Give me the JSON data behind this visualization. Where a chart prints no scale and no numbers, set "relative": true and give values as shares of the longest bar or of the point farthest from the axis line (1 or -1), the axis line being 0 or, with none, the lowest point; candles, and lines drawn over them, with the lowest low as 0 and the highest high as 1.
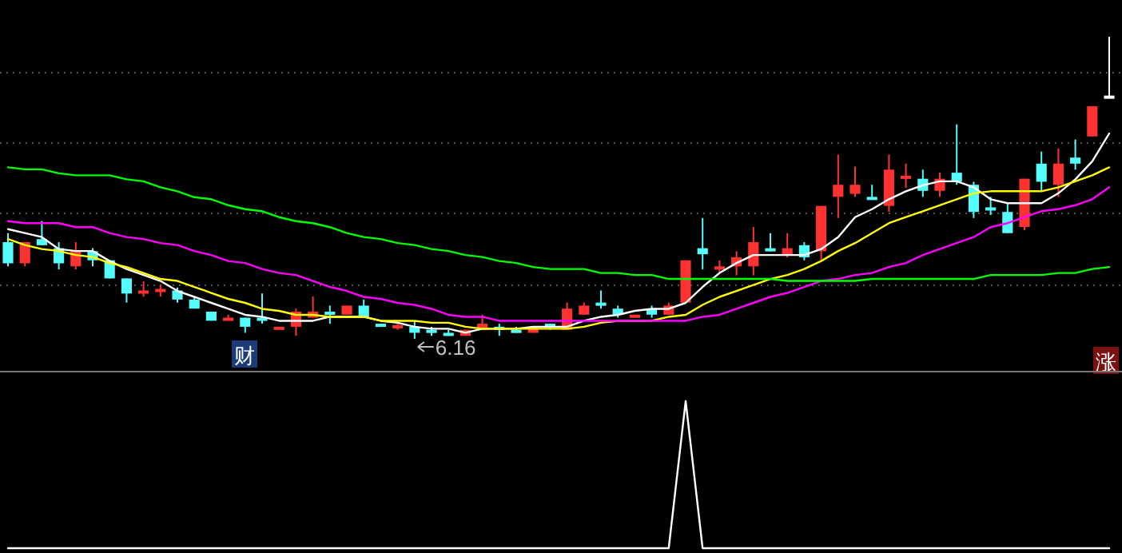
{
  "chart_data": [
    {
      "type": "candlestick",
      "relative": true,
      "grid": "y",
      "categories": [
        null,
        null,
        null,
        null,
        null,
        null,
        null,
        null,
        null,
        null,
        null,
        null,
        null,
        null,
        null,
        null,
        null,
        null,
        null,
        null,
        null,
        null,
        null,
        null,
        null,
        null,
        null,
        null,
        null,
        null,
        null,
        null,
        null,
        null,
        null,
        null,
        null,
        null,
        null,
        null,
        null,
        null,
        null,
        null,
        null,
        null,
        null,
        null,
        null,
        null,
        null,
        null,
        null,
        null,
        null,
        null,
        null,
        null,
        null,
        null,
        null,
        null,
        null,
        null,
        null,
        null
      ],
      "ohlc": [
        [
          0.32,
          0.35,
          0.24,
          0.25
        ],
        [
          0.25,
          0.32,
          0.24,
          0.32
        ],
        [
          0.33,
          0.39,
          0.31,
          0.31
        ],
        [
          0.3,
          0.32,
          0.23,
          0.25
        ],
        [
          0.24,
          0.32,
          0.23,
          0.29
        ],
        [
          0.29,
          0.3,
          0.24,
          0.26
        ],
        [
          0.26,
          0.26,
          0.2,
          0.2
        ],
        [
          0.2,
          0.2,
          0.12,
          0.15
        ],
        [
          0.15,
          0.19,
          0.14,
          0.16
        ],
        [
          0.16,
          0.18,
          0.14,
          0.16
        ],
        [
          0.16,
          0.17,
          0.12,
          0.13
        ],
        [
          0.13,
          0.14,
          0.1,
          0.1
        ],
        [
          0.09,
          0.09,
          0.06,
          0.06
        ],
        [
          0.06,
          0.08,
          0.06,
          0.07
        ],
        [
          0.07,
          0.07,
          0.02,
          0.04
        ],
        [
          0.07,
          0.15,
          0.05,
          0.06
        ],
        [
          0.03,
          0.04,
          0.03,
          0.04
        ],
        [
          0.04,
          0.1,
          0.01,
          0.09
        ],
        [
          0.07,
          0.14,
          0.07,
          0.09
        ],
        [
          0.09,
          0.11,
          0.05,
          0.08
        ],
        [
          0.08,
          0.11,
          0.08,
          0.11
        ],
        [
          0.11,
          0.13,
          0.07,
          0.07
        ],
        [
          0.05,
          0.05,
          0.04,
          0.04
        ],
        [
          0.04,
          0.05,
          0.03,
          0.04
        ],
        [
          0.04,
          0.06,
          0.0,
          0.02
        ],
        [
          0.03,
          0.04,
          0.01,
          0.02
        ],
        [
          0.02,
          0.03,
          0.01,
          0.01
        ],
        [
          0.01,
          0.03,
          0.01,
          0.03
        ],
        [
          0.03,
          0.08,
          0.03,
          0.05
        ],
        [
          0.04,
          0.05,
          0.01,
          0.03
        ],
        [
          0.03,
          0.04,
          0.02,
          0.02
        ],
        [
          0.02,
          0.04,
          0.02,
          0.04
        ],
        [
          0.05,
          0.05,
          0.03,
          0.04
        ],
        [
          0.03,
          0.12,
          0.03,
          0.1
        ],
        [
          0.08,
          0.12,
          0.08,
          0.11
        ],
        [
          0.12,
          0.16,
          0.1,
          0.11
        ],
        [
          0.1,
          0.11,
          0.07,
          0.08
        ],
        [
          0.07,
          0.08,
          0.07,
          0.08
        ],
        [
          0.1,
          0.11,
          0.07,
          0.08
        ],
        [
          0.08,
          0.12,
          0.08,
          0.11
        ],
        [
          0.12,
          0.26,
          0.12,
          0.26
        ],
        [
          0.3,
          0.4,
          0.23,
          0.28
        ],
        [
          0.23,
          0.26,
          0.22,
          0.24
        ],
        [
          0.24,
          0.29,
          0.21,
          0.27
        ],
        [
          0.24,
          0.37,
          0.21,
          0.32
        ],
        [
          0.3,
          0.35,
          0.29,
          0.29
        ],
        [
          0.28,
          0.35,
          0.27,
          0.3
        ],
        [
          0.31,
          0.32,
          0.26,
          0.27
        ],
        [
          0.29,
          0.44,
          0.26,
          0.44
        ],
        [
          0.47,
          0.61,
          0.4,
          0.51
        ],
        [
          0.48,
          0.57,
          0.47,
          0.51
        ],
        [
          0.47,
          0.51,
          0.46,
          0.46
        ],
        [
          0.44,
          0.61,
          0.42,
          0.56
        ],
        [
          0.53,
          0.58,
          0.5,
          0.54
        ],
        [
          0.53,
          0.56,
          0.47,
          0.49
        ],
        [
          0.49,
          0.55,
          0.47,
          0.53
        ],
        [
          0.55,
          0.71,
          0.51,
          0.52
        ],
        [
          0.51,
          0.52,
          0.4,
          0.42
        ],
        [
          0.43,
          0.47,
          0.41,
          0.43
        ],
        [
          0.42,
          0.45,
          0.35,
          0.35
        ],
        [
          0.37,
          0.53,
          0.36,
          0.53
        ],
        [
          0.58,
          0.62,
          0.49,
          0.52
        ],
        [
          0.51,
          0.63,
          0.47,
          0.58
        ],
        [
          0.6,
          0.66,
          0.56,
          0.58
        ],
        [
          0.67,
          0.77,
          0.67,
          0.77
        ],
        [
          0.8,
          1.0,
          0.8,
          0.8
        ]
      ],
      "colors": [
        "#54fcfc",
        "#ff3232",
        "#54fcfc",
        "#54fcfc",
        "#ff3232",
        "#54fcfc",
        "#54fcfc",
        "#54fcfc",
        "#ff3232",
        "#ff3232",
        "#54fcfc",
        "#54fcfc",
        "#54fcfc",
        "#ff3232",
        "#54fcfc",
        "#54fcfc",
        "#ff3232",
        "#ff3232",
        "#ff3232",
        "#54fcfc",
        "#ff3232",
        "#54fcfc",
        "#54fcfc",
        "#ff3232",
        "#54fcfc",
        "#54fcfc",
        "#54fcfc",
        "#ff3232",
        "#ff3232",
        "#54fcfc",
        "#54fcfc",
        "#ff3232",
        "#54fcfc",
        "#ff3232",
        "#ff3232",
        "#54fcfc",
        "#54fcfc",
        "#ff3232",
        "#54fcfc",
        "#ff3232",
        "#ff3232",
        "#54fcfc",
        "#ff3232",
        "#ff3232",
        "#ff3232",
        "#54fcfc",
        "#ff3232",
        "#54fcfc",
        "#ff3232",
        "#ff3232",
        "#ff3232",
        "#54fcfc",
        "#ff3232",
        "#ff3232",
        "#54fcfc",
        "#ff3232",
        "#54fcfc",
        "#54fcfc",
        "#54fcfc",
        "#54fcfc",
        "#ff3232",
        "#54fcfc",
        "#ff3232",
        "#54fcfc",
        "#ff3232",
        "#ffffff"
      ],
      "annotations": [
        {
          "text": "6.16",
          "y": 0
        },
        "财",
        "涨"
      ]
    },
    {
      "type": "line",
      "relative": true,
      "categories": [
        null,
        null,
        null,
        null,
        null,
        null,
        null,
        null,
        null,
        null,
        null,
        null,
        null,
        null,
        null,
        null,
        null,
        null,
        null,
        null,
        null,
        null,
        null,
        null,
        null,
        null,
        null,
        null,
        null,
        null,
        null,
        null,
        null,
        null,
        null,
        null,
        null,
        null,
        null,
        null,
        null,
        null,
        null,
        null,
        null,
        null,
        null,
        null,
        null,
        null,
        null,
        null,
        null,
        null,
        null,
        null,
        null,
        null,
        null,
        null,
        null,
        null,
        null,
        null,
        null,
        null
      ],
      "series": [
        {
          "color": "#ffffff",
          "values": [
            0.52,
            0.5,
            0.48,
            0.42,
            0.41,
            0.41,
            0.36,
            0.32,
            0.29,
            0.26,
            0.21,
            0.18,
            0.15,
            0.12,
            0.09,
            0.08,
            0.06,
            0.06,
            0.06,
            0.08,
            0.08,
            0.08,
            0.06,
            0.05,
            0.03,
            0.02,
            0.02,
            0.0,
            0.02,
            0.02,
            0.02,
            0.03,
            0.03,
            0.03,
            0.06,
            0.08,
            0.09,
            0.11,
            0.12,
            0.12,
            0.15,
            0.23,
            0.3,
            0.35,
            0.39,
            0.39,
            0.39,
            0.39,
            0.42,
            0.48,
            0.58,
            0.62,
            0.67,
            0.71,
            0.74,
            0.76,
            0.76,
            0.73,
            0.67,
            0.65,
            0.65,
            0.65,
            0.7,
            0.77,
            0.86,
            1.0
          ]
        },
        {
          "color": "#ffff00",
          "values": [
            0.47,
            0.44,
            0.42,
            0.41,
            0.39,
            0.38,
            0.35,
            0.33,
            0.3,
            0.27,
            0.26,
            0.23,
            0.2,
            0.17,
            0.15,
            0.12,
            0.11,
            0.09,
            0.09,
            0.08,
            0.08,
            0.08,
            0.06,
            0.06,
            0.06,
            0.05,
            0.05,
            0.03,
            0.02,
            0.02,
            0.02,
            0.02,
            0.02,
            0.02,
            0.03,
            0.05,
            0.06,
            0.06,
            0.06,
            0.08,
            0.09,
            0.14,
            0.18,
            0.21,
            0.24,
            0.27,
            0.29,
            0.32,
            0.36,
            0.41,
            0.45,
            0.5,
            0.55,
            0.58,
            0.61,
            0.64,
            0.67,
            0.7,
            0.71,
            0.71,
            0.71,
            0.71,
            0.73,
            0.76,
            0.79,
            0.83
          ]
        },
        {
          "color": "#ff00ff",
          "values": [
            0.56,
            0.55,
            0.55,
            0.55,
            0.53,
            0.53,
            0.5,
            0.48,
            0.47,
            0.45,
            0.44,
            0.41,
            0.39,
            0.36,
            0.35,
            0.32,
            0.3,
            0.29,
            0.26,
            0.23,
            0.21,
            0.18,
            0.17,
            0.15,
            0.14,
            0.12,
            0.09,
            0.08,
            0.08,
            0.06,
            0.06,
            0.06,
            0.06,
            0.06,
            0.06,
            0.06,
            0.06,
            0.06,
            0.06,
            0.06,
            0.06,
            0.08,
            0.09,
            0.12,
            0.15,
            0.18,
            0.2,
            0.23,
            0.26,
            0.27,
            0.29,
            0.3,
            0.33,
            0.35,
            0.39,
            0.42,
            0.45,
            0.48,
            0.53,
            0.55,
            0.58,
            0.61,
            0.62,
            0.64,
            0.67,
            0.73
          ]
        },
        {
          "color": "#00ff00",
          "values": [
            0.83,
            0.82,
            0.82,
            0.8,
            0.79,
            0.79,
            0.79,
            0.77,
            0.76,
            0.73,
            0.71,
            0.68,
            0.67,
            0.64,
            0.62,
            0.61,
            0.58,
            0.56,
            0.55,
            0.53,
            0.5,
            0.48,
            0.47,
            0.45,
            0.44,
            0.42,
            0.41,
            0.39,
            0.38,
            0.36,
            0.35,
            0.33,
            0.32,
            0.32,
            0.32,
            0.3,
            0.3,
            0.29,
            0.29,
            0.27,
            0.27,
            0.27,
            0.27,
            0.27,
            0.27,
            0.27,
            0.26,
            0.26,
            0.26,
            0.26,
            0.26,
            0.27,
            0.27,
            0.27,
            0.27,
            0.27,
            0.27,
            0.27,
            0.29,
            0.29,
            0.29,
            0.29,
            0.3,
            0.3,
            0.32,
            0.33
          ]
        }
      ]
    },
    {
      "type": "line",
      "relative": true,
      "categories": [
        null,
        null,
        null,
        null,
        null,
        null,
        null,
        null,
        null,
        null,
        null,
        null,
        null,
        null,
        null,
        null,
        null,
        null,
        null,
        null,
        null,
        null,
        null,
        null,
        null,
        null,
        null,
        null,
        null,
        null,
        null,
        null,
        null,
        null,
        null,
        null,
        null,
        null,
        null,
        null,
        null,
        null,
        null,
        null,
        null,
        null,
        null,
        null,
        null,
        null,
        null,
        null,
        null,
        null,
        null,
        null,
        null,
        null,
        null,
        null,
        null,
        null,
        null,
        null,
        null,
        null
      ],
      "series": [
        {
          "color": "#ffffff",
          "values": [
            0,
            0,
            0,
            0,
            0,
            0,
            0,
            0,
            0,
            0,
            0,
            0,
            0,
            0,
            0,
            0,
            0,
            0,
            0,
            0,
            0,
            0,
            0,
            0,
            0,
            0,
            0,
            0,
            0,
            0,
            0,
            0,
            0,
            0,
            0,
            0,
            0,
            0,
            0,
            0,
            1,
            0,
            0,
            0,
            0,
            0,
            0,
            0,
            0,
            0,
            0,
            0,
            0,
            0,
            0,
            0,
            0,
            0,
            0,
            0,
            0,
            0,
            0,
            0,
            0,
            0
          ]
        }
      ]
    }
  ]
}
